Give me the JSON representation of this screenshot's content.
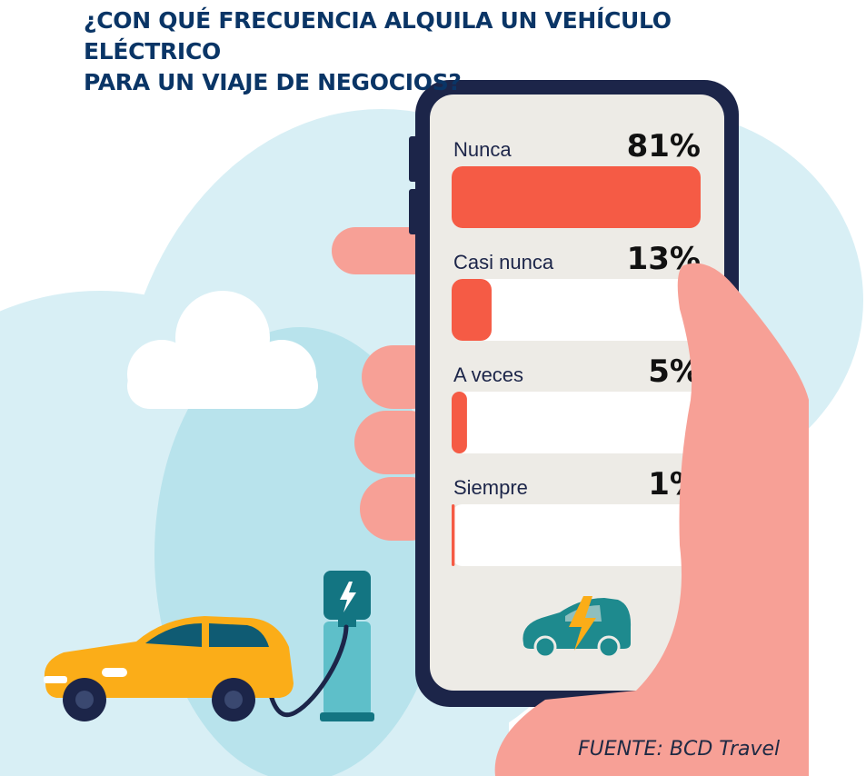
{
  "title_lines": [
    "¿CON QUÉ FRECUENCIA ALQUILA UN VEHÍCULO ELÉCTRICO",
    "PARA UN VIAJE DE NEGOCIOS?"
  ],
  "source": "FUENTE: BCD Travel",
  "colors": {
    "title": "#0a3566",
    "bar": "#f55b45",
    "track": "#ffffff",
    "screen": "#edebe6",
    "phone": "#1c2549",
    "hand": "#f7a096",
    "blob": "#d8eff5",
    "car": "#fbad18",
    "charger": "#5ebfc9"
  },
  "chart_data": {
    "type": "bar",
    "orientation": "horizontal",
    "categories": [
      "Nunca",
      "Casi nunca",
      "A veces",
      "Siempre"
    ],
    "values": [
      81,
      13,
      5,
      1
    ],
    "value_labels": [
      "81%",
      "13%",
      "5%",
      "1%"
    ],
    "unit": "%",
    "xlim": [
      0,
      81
    ]
  }
}
